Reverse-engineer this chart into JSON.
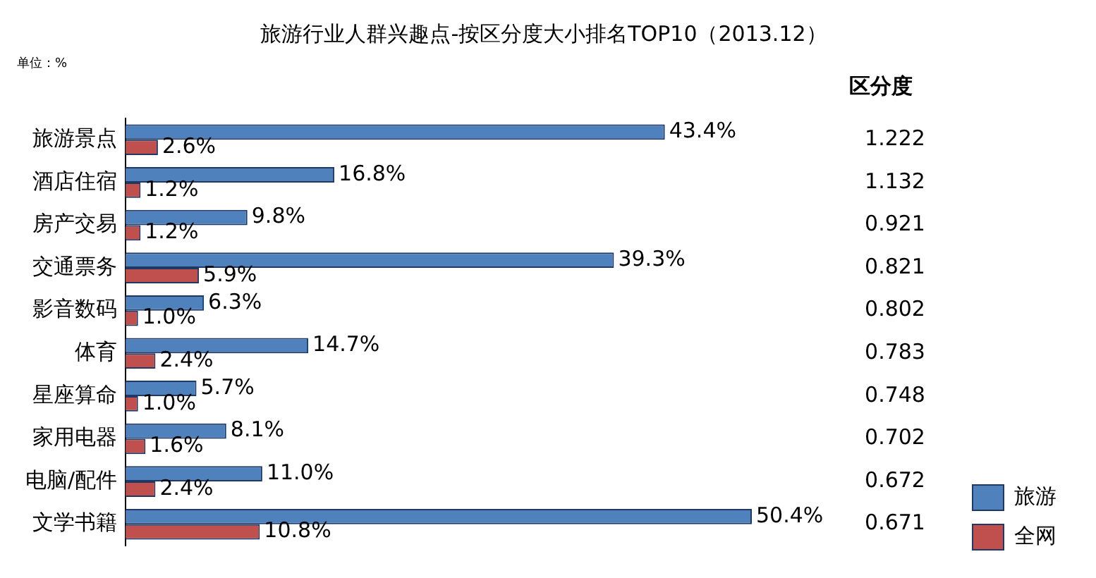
{
  "chart_data": {
    "type": "bar",
    "orientation": "horizontal",
    "title": "旅游行业人群兴趣点-按区分度大小排名TOP10（2013.12）",
    "categories": [
      "旅游景点",
      "酒店住宿",
      "房产交易",
      "交通票务",
      "影音数码",
      "体育",
      "星座算命",
      "家用电器",
      "电脑/配件",
      "文学书籍"
    ],
    "series": [
      {
        "name": "旅游",
        "color": "#4f81bd",
        "values": [
          43.4,
          16.8,
          9.8,
          39.3,
          6.3,
          14.7,
          5.7,
          8.1,
          11.0,
          50.4
        ],
        "value_labels": [
          "43.4%",
          "16.8%",
          "9.8%",
          "39.3%",
          "6.3%",
          "14.7%",
          "5.7%",
          "8.1%",
          "11.0%",
          "50.4%"
        ]
      },
      {
        "name": "全网",
        "color": "#c0504d",
        "values": [
          2.6,
          1.2,
          1.2,
          5.9,
          1.0,
          2.4,
          1.0,
          1.6,
          2.4,
          10.8
        ],
        "value_labels": [
          "2.6%",
          "1.2%",
          "1.2%",
          "5.9%",
          "1.0%",
          "2.4%",
          "1.0%",
          "1.6%",
          "2.4%",
          "10.8%"
        ]
      }
    ],
    "legend": "bottom right",
    "grid": false,
    "annotations": [
      "单位：%",
      "区分度",
      "1.222",
      "1.132",
      "0.921",
      "0.821",
      "0.802",
      "0.783",
      "0.748",
      "0.702",
      "0.672",
      "0.671"
    ]
  }
}
